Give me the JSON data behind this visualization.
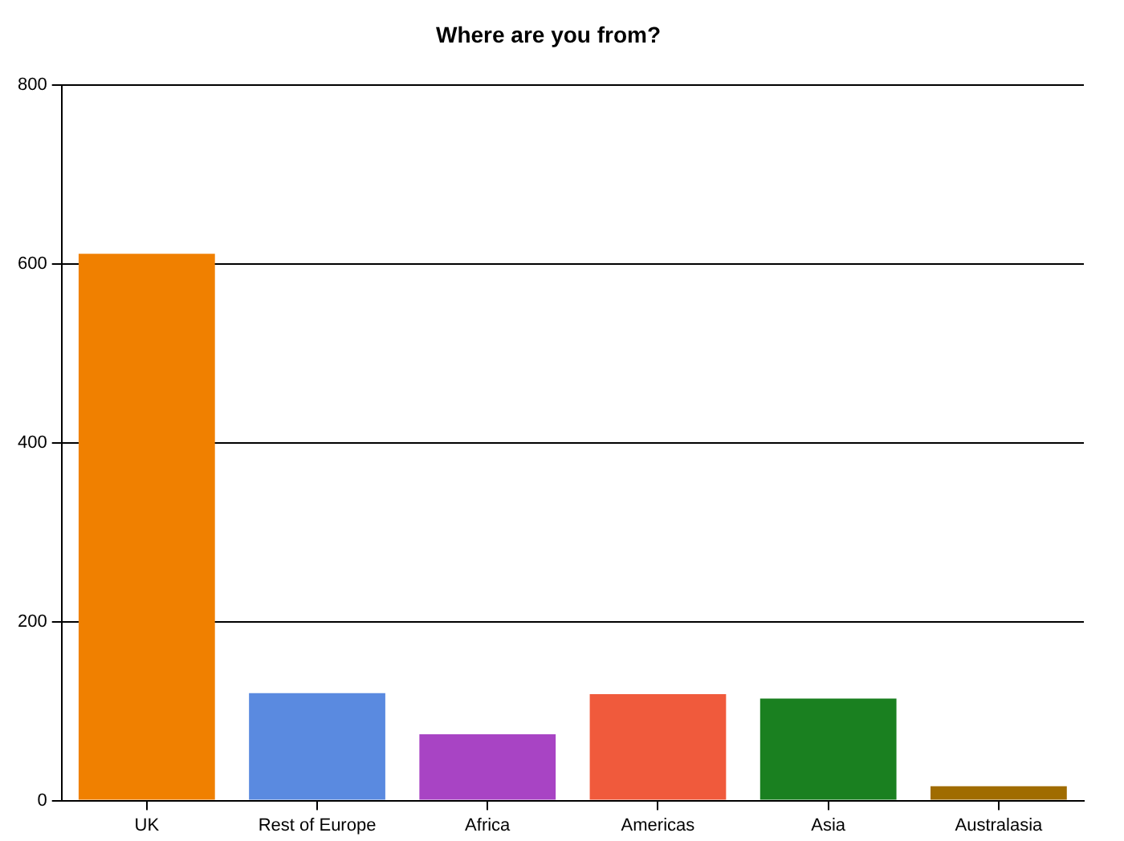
{
  "chart_data": {
    "type": "bar",
    "title": "Where are you from?",
    "categories": [
      "UK",
      "Rest of Europe",
      "Africa",
      "Americas",
      "Asia",
      "Australasia"
    ],
    "values": [
      611,
      120,
      74,
      119,
      114,
      16
    ],
    "colors": [
      "#f08000",
      "#5a8ae0",
      "#a844c4",
      "#f05a3c",
      "#1a8020",
      "#a06c00"
    ],
    "ylim": [
      0,
      800
    ],
    "yticks": [
      0,
      200,
      400,
      600,
      800
    ],
    "grid": "y",
    "legend": false
  }
}
